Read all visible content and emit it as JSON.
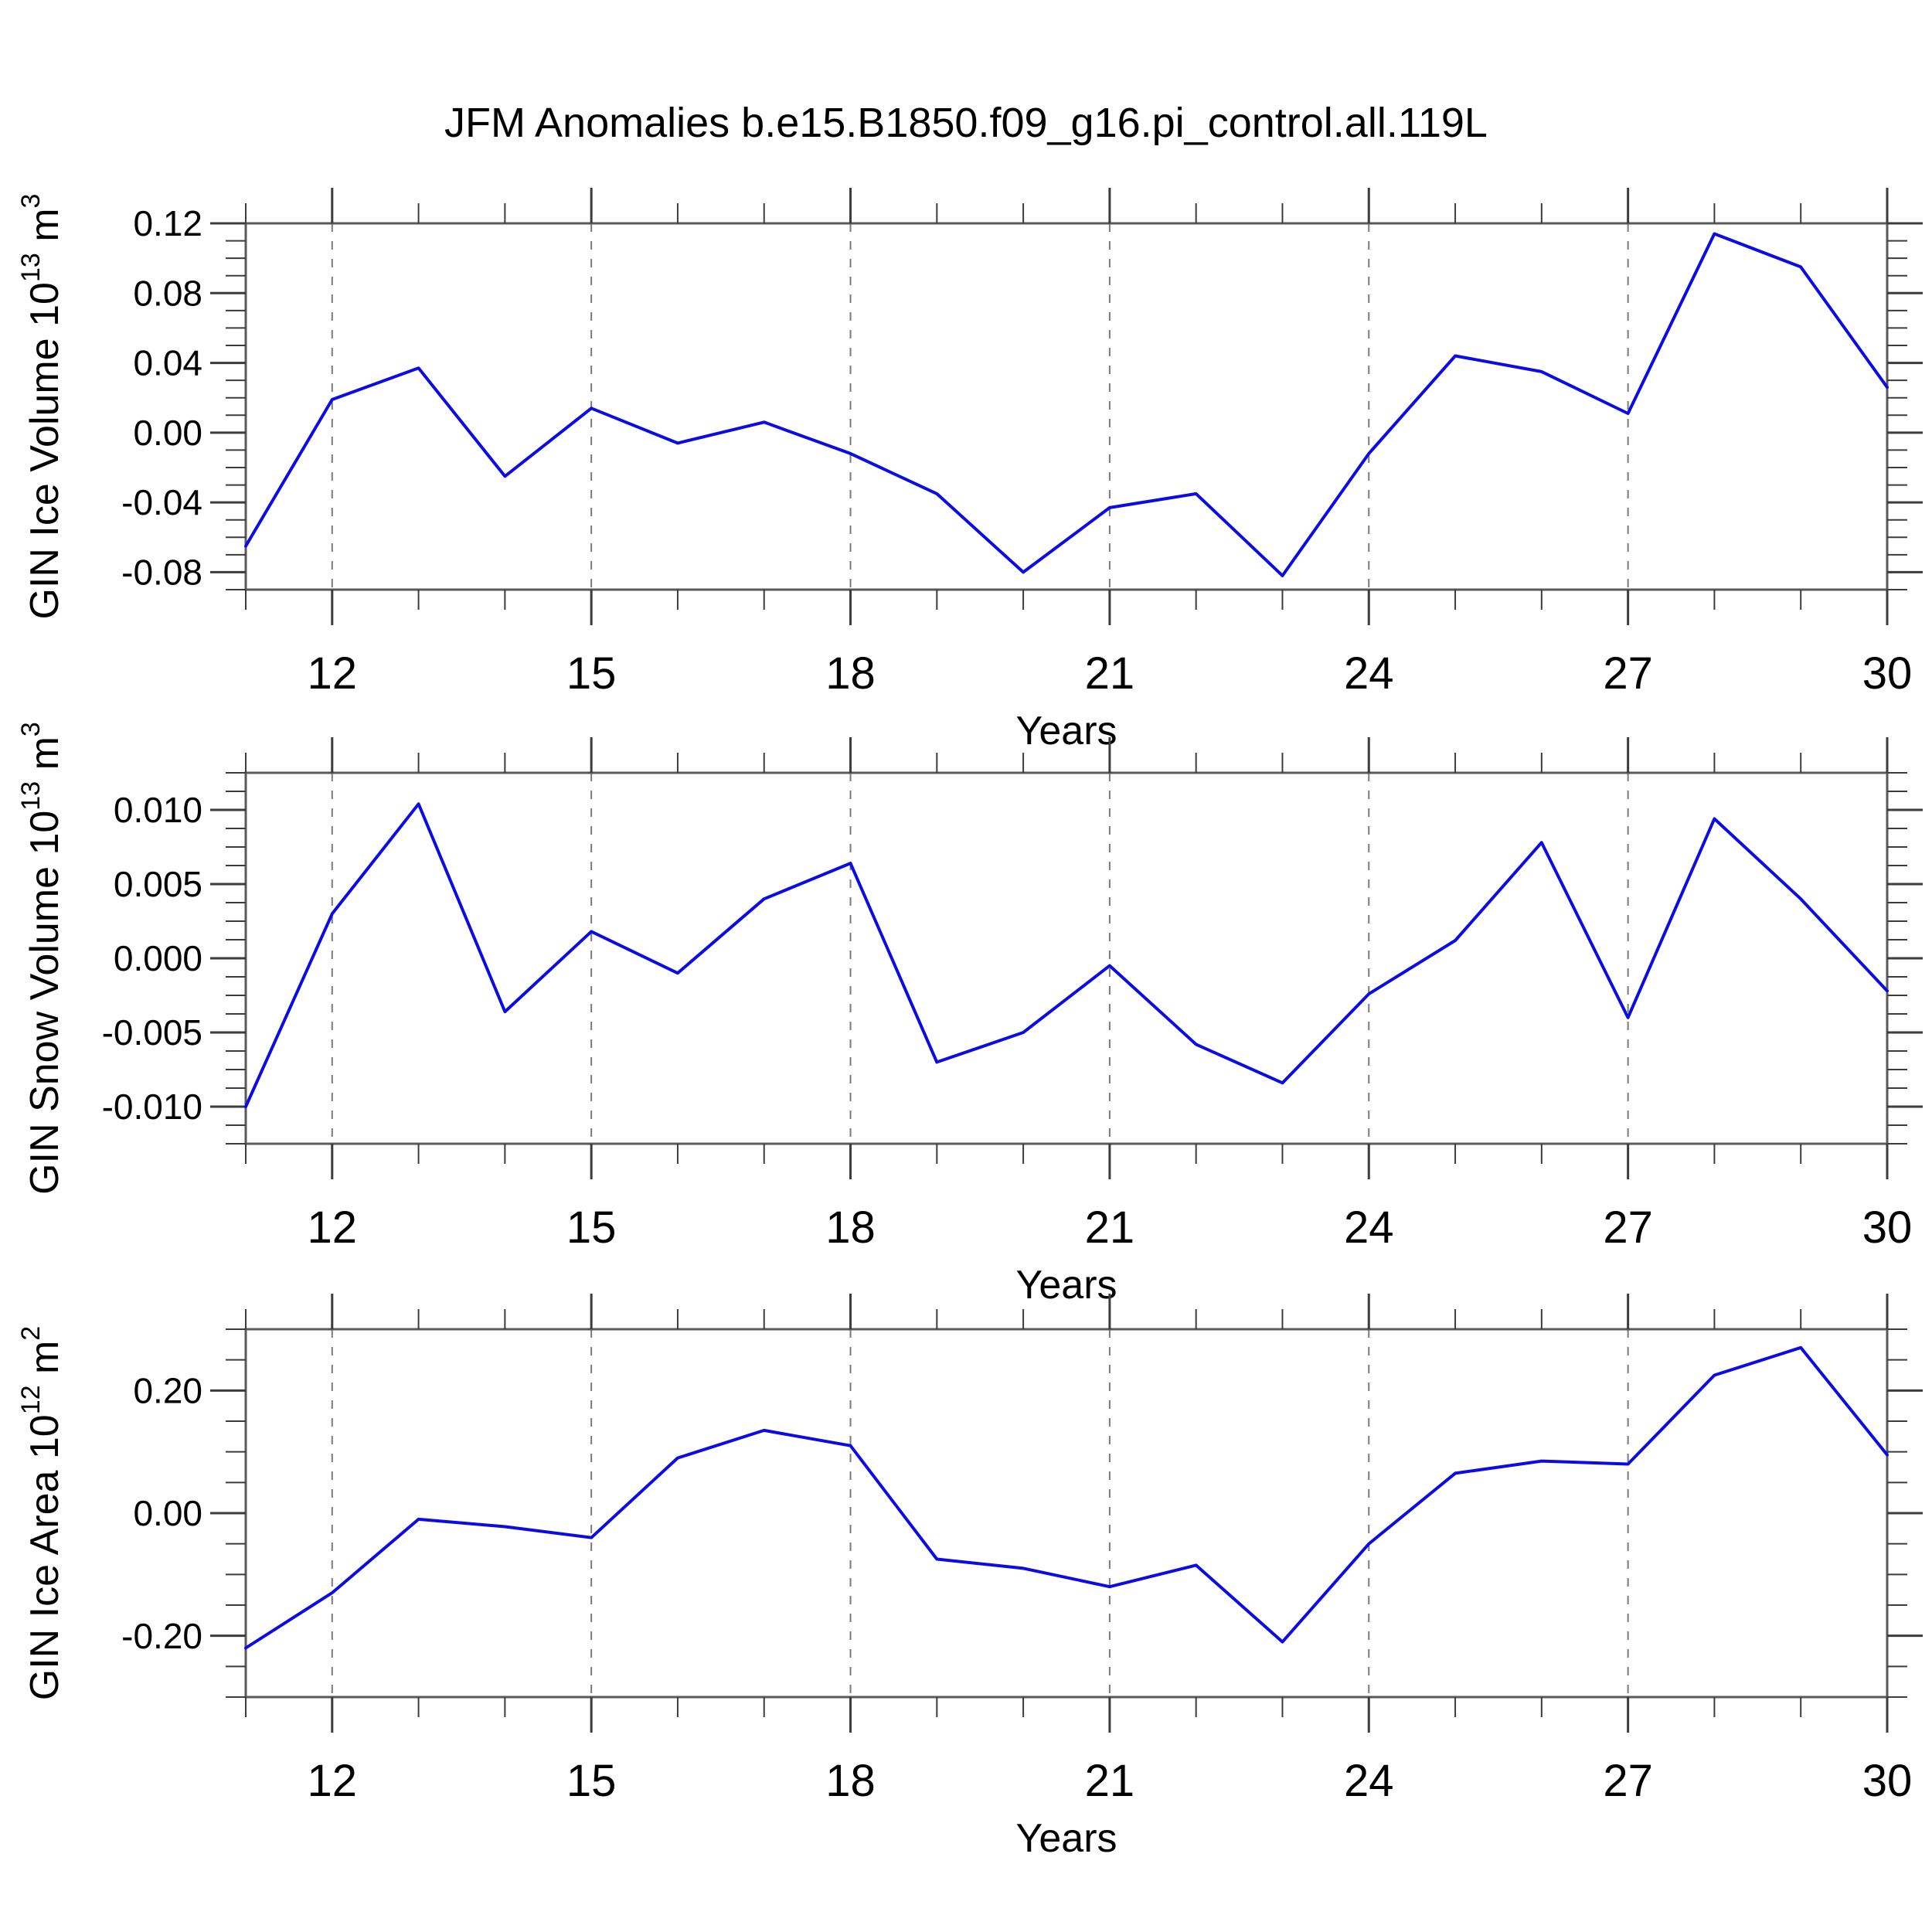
{
  "page_title": "JFM Anomalies b.e15.B1850.f09_g16.pi_control.all.119L",
  "colors": {
    "line": "#0b0be6",
    "gridline": "#7a7a7a",
    "frame": "#5a5a5a",
    "tick": "#3c3c3c",
    "text": "#000000",
    "background": "#ffffff"
  },
  "chart_data": [
    {
      "type": "line",
      "name": "ice-volume",
      "ylabel_prefix": "GIN Ice Volume 10",
      "ylabel_exponent": "13",
      "ylabel_unit": " m",
      "ylabel_unit_exponent": "3",
      "xlabel": "Years",
      "xlim": [
        11,
        30
      ],
      "ylim": [
        -0.09,
        0.12
      ],
      "x": [
        11,
        12,
        13,
        14,
        15,
        16,
        17,
        18,
        19,
        20,
        21,
        22,
        23,
        24,
        25,
        26,
        27,
        28,
        29,
        30
      ],
      "values": [
        -0.065,
        0.019,
        0.037,
        -0.025,
        0.014,
        -0.006,
        0.006,
        -0.012,
        -0.035,
        -0.08,
        -0.043,
        -0.035,
        -0.082,
        -0.012,
        0.044,
        0.035,
        0.011,
        0.114,
        0.095,
        0.026
      ],
      "y_major_ticks": [
        0.12,
        0.08,
        0.04,
        0.0,
        -0.04,
        -0.08
      ],
      "y_major_labels": [
        "0.12",
        "0.08",
        "0.04",
        "0.00",
        "-0.04",
        "-0.08"
      ],
      "y_minor_step": 0.01,
      "x_major_ticks": [
        12,
        15,
        18,
        21,
        24,
        27,
        30
      ],
      "x_major_labels": [
        "12",
        "15",
        "18",
        "21",
        "24",
        "27",
        "30"
      ],
      "x_minor_step": 1,
      "x_gridlines": [
        12,
        15,
        18,
        21,
        24,
        27
      ],
      "grid_style": "dashed",
      "legend": "none"
    },
    {
      "type": "line",
      "name": "snow-volume",
      "ylabel_prefix": "GIN Snow Volume 10",
      "ylabel_exponent": "13",
      "ylabel_unit": " m",
      "ylabel_unit_exponent": "3",
      "xlabel": "Years",
      "xlim": [
        11,
        30
      ],
      "ylim": [
        -0.0125,
        0.0125
      ],
      "x": [
        11,
        12,
        13,
        14,
        15,
        16,
        17,
        18,
        19,
        20,
        21,
        22,
        23,
        24,
        25,
        26,
        27,
        28,
        29,
        30
      ],
      "values": [
        -0.01,
        0.003,
        0.0104,
        -0.0036,
        0.0018,
        -0.001,
        0.004,
        0.0064,
        -0.007,
        -0.005,
        -0.0005,
        -0.0058,
        -0.0084,
        -0.0024,
        0.0012,
        0.0078,
        -0.004,
        0.0094,
        0.004,
        -0.0022
      ],
      "y_major_ticks": [
        0.01,
        0.005,
        0.0,
        -0.005,
        -0.01
      ],
      "y_major_labels": [
        "0.010",
        "0.005",
        "0.000",
        "-0.005",
        "-0.010"
      ],
      "y_minor_step": 0.00125,
      "x_major_ticks": [
        12,
        15,
        18,
        21,
        24,
        27,
        30
      ],
      "x_major_labels": [
        "12",
        "15",
        "18",
        "21",
        "24",
        "27",
        "30"
      ],
      "x_minor_step": 1,
      "x_gridlines": [
        12,
        15,
        18,
        21,
        24,
        27
      ],
      "grid_style": "dashed",
      "legend": "none"
    },
    {
      "type": "line",
      "name": "ice-area",
      "ylabel_prefix": "GIN Ice Area 10",
      "ylabel_exponent": "12",
      "ylabel_unit": " m",
      "ylabel_unit_exponent": "2",
      "xlabel": "Years",
      "xlim": [
        11,
        30
      ],
      "ylim": [
        -0.3,
        0.3
      ],
      "x": [
        11,
        12,
        13,
        14,
        15,
        16,
        17,
        18,
        19,
        20,
        21,
        22,
        23,
        24,
        25,
        26,
        27,
        28,
        29,
        30
      ],
      "values": [
        -0.22,
        -0.13,
        -0.01,
        -0.022,
        -0.04,
        0.09,
        0.135,
        0.11,
        -0.075,
        -0.09,
        -0.12,
        -0.085,
        -0.21,
        -0.05,
        0.065,
        0.085,
        0.08,
        0.225,
        0.27,
        0.095
      ],
      "y_major_ticks": [
        0.2,
        0.0,
        -0.2
      ],
      "y_major_labels": [
        "0.20",
        "0.00",
        "-0.20"
      ],
      "y_minor_step": 0.05,
      "x_major_ticks": [
        12,
        15,
        18,
        21,
        24,
        27,
        30
      ],
      "x_major_labels": [
        "12",
        "15",
        "18",
        "21",
        "24",
        "27",
        "30"
      ],
      "x_minor_step": 1,
      "x_gridlines": [
        12,
        15,
        18,
        21,
        24,
        27
      ],
      "grid_style": "dashed",
      "legend": "none"
    }
  ]
}
